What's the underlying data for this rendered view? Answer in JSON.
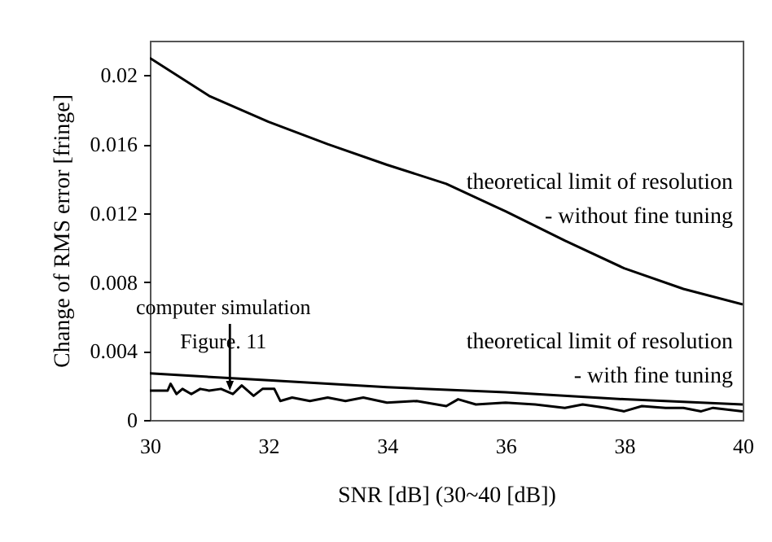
{
  "chart_data": {
    "type": "line",
    "xlabel": "SNR [dB] (30~40 [dB])",
    "ylabel": "Change of RMS error [fringe]",
    "xlim": [
      30,
      40
    ],
    "xticks": [
      30,
      32,
      34,
      36,
      38,
      40
    ],
    "ylim": [
      0,
      0.022
    ],
    "yticks": [
      0,
      0.004,
      0.008,
      0.012,
      0.016,
      0.02
    ],
    "grid": false,
    "marker": "none",
    "line_style": "solid",
    "series": [
      {
        "color": "#000000",
        "x": [
          30,
          31,
          32,
          33,
          34,
          35,
          36,
          37,
          38,
          39,
          40
        ],
        "values": [
          0.021,
          0.0188,
          0.0173,
          0.016,
          0.0148,
          0.0137,
          0.0121,
          0.0104,
          0.0088,
          0.0076,
          0.0067
        ]
      },
      {
        "color": "#000000",
        "x": [
          30,
          32,
          34,
          36,
          38,
          40
        ],
        "values": [
          0.0027,
          0.0023,
          0.0019,
          0.0016,
          0.0012,
          0.0009
        ]
      },
      {
        "color": "#000000",
        "x": [
          30,
          30.3,
          30.35,
          30.45,
          30.55,
          30.7,
          30.85,
          31,
          31.2,
          31.4,
          31.55,
          31.75,
          31.9,
          32.1,
          32.2,
          32.4,
          32.7,
          33,
          33.3,
          33.6,
          34,
          34.5,
          35,
          35.2,
          35.5,
          36,
          36.5,
          37,
          37.3,
          37.7,
          38,
          38.3,
          38.7,
          39,
          39.3,
          39.5,
          40
        ],
        "values": [
          0.0017,
          0.0017,
          0.0021,
          0.0015,
          0.0018,
          0.0015,
          0.0018,
          0.0017,
          0.0018,
          0.0015,
          0.002,
          0.0014,
          0.0018,
          0.0018,
          0.0011,
          0.0013,
          0.0011,
          0.0013,
          0.0011,
          0.0013,
          0.001,
          0.0011,
          0.0008,
          0.0012,
          0.0009,
          0.001,
          0.0009,
          0.0007,
          0.0009,
          0.0007,
          0.0005,
          0.0008,
          0.0007,
          0.0007,
          0.0005,
          0.0007,
          0.0005
        ]
      }
    ],
    "annotations": [
      "theoretical limit of resolution\n- without fine tuning",
      "theoretical limit of resolution\n- with fine tuning",
      {
        "text": "computer simulation\nFigure. 11",
        "x": 31.35,
        "y": 0.0017
      }
    ]
  }
}
